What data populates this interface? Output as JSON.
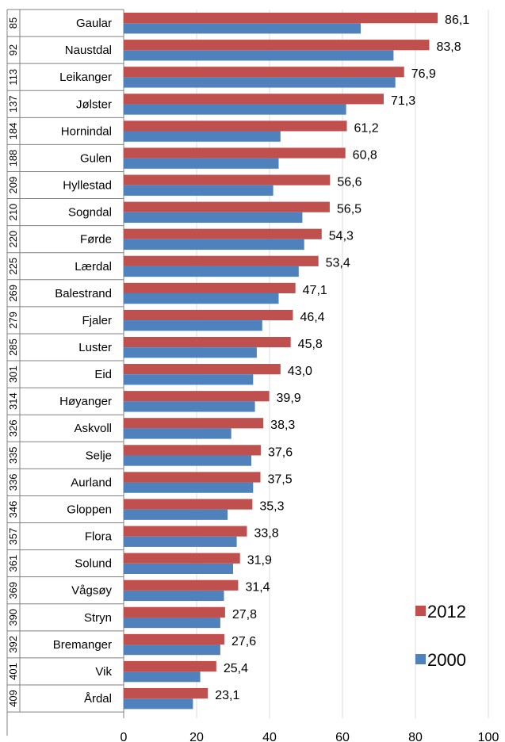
{
  "chart_data": {
    "type": "bar",
    "orientation": "horizontal",
    "categories": [
      "Gaular",
      "Naustdal",
      "Leikanger",
      "Jølster",
      "Hornindal",
      "Gulen",
      "Hyllestad",
      "Sogndal",
      "Førde",
      "Lærdal",
      "Balestrand",
      "Fjaler",
      "Luster",
      "Eid",
      "Høyanger",
      "Askvoll",
      "Selje",
      "Aurland",
      "Gloppen",
      "Flora",
      "Solund",
      "Vågsøy",
      "Stryn",
      "Bremanger",
      "Vik",
      "Årdal"
    ],
    "ranks": [
      "85",
      "92",
      "113",
      "137",
      "184",
      "188",
      "209",
      "210",
      "220",
      "225",
      "269",
      "279",
      "285",
      "301",
      "314",
      "326",
      "335",
      "336",
      "346",
      "357",
      "361",
      "369",
      "390",
      "392",
      "401",
      "409"
    ],
    "series": [
      {
        "name": "2012",
        "color": "#C0504D",
        "values": [
          86.1,
          83.8,
          76.9,
          71.3,
          61.2,
          60.8,
          56.6,
          56.5,
          54.3,
          53.4,
          47.1,
          46.4,
          45.8,
          43.0,
          39.9,
          38.3,
          37.6,
          37.5,
          35.3,
          33.8,
          31.9,
          31.4,
          27.8,
          27.6,
          25.4,
          23.1
        ],
        "labels": [
          "86,1",
          "83,8",
          "76,9",
          "71,3",
          "61,2",
          "60,8",
          "56,6",
          "56,5",
          "54,3",
          "53,4",
          "47,1",
          "46,4",
          "45,8",
          "43,0",
          "39,9",
          "38,3",
          "37,6",
          "37,5",
          "35,3",
          "33,8",
          "31,9",
          "31,4",
          "27,8",
          "27,6",
          "25,4",
          "23,1"
        ]
      },
      {
        "name": "2000",
        "color": "#4F81BD",
        "values": [
          65,
          74,
          74.5,
          61,
          43,
          42.5,
          41,
          49,
          49.5,
          48,
          42.5,
          38,
          36.5,
          35.5,
          36,
          29.5,
          35,
          35.5,
          28.5,
          31,
          30,
          27.5,
          26.5,
          26.5,
          21,
          19
        ]
      }
    ],
    "xlim": [
      0,
      100
    ],
    "xticks": [
      "0",
      "20",
      "40",
      "60",
      "80",
      "100"
    ],
    "legend": {
      "position": "right",
      "items": [
        "2012",
        "2000"
      ]
    },
    "grid": true
  }
}
